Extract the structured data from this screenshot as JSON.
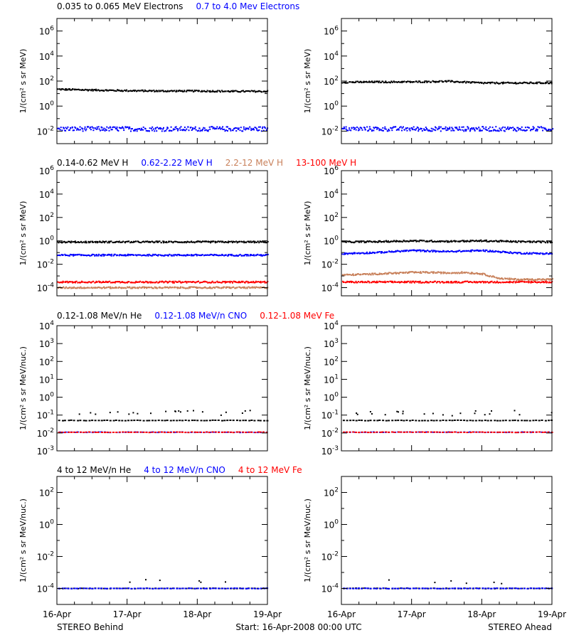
{
  "colors": {
    "black": "#000000",
    "blue": "#0000ff",
    "tan": "#c8805a",
    "red": "#ff0000"
  },
  "footer": {
    "left": "STEREO Behind",
    "center": "Start: 16-Apr-2008 00:00 UTC",
    "right": "STEREO Ahead"
  },
  "chart_data": [
    {
      "type": "scatter",
      "row": "electrons",
      "side": "STEREO Behind",
      "title_segments": [
        {
          "text": "0.035 to 0.065 MeV Electrons",
          "color": "#000000"
        },
        {
          "text": "0.7 to 4.0 Mev Electrons",
          "color": "#0000ff"
        }
      ],
      "ylabel": "1/(cm² s sr MeV)",
      "yscale": "log",
      "ylim": [
        0.001,
        10000000
      ],
      "ytick_exponents": [
        -2,
        0,
        2,
        4,
        6
      ],
      "x_ticks": [
        "16-Apr",
        "17-Apr",
        "18-Apr",
        "19-Apr"
      ],
      "xlim_days": [
        0,
        3
      ],
      "series": [
        {
          "name": "0.035 to 0.065 MeV Electrons",
          "color": "#000000",
          "x": [
            0,
            0.5,
            1,
            1.5,
            2,
            2.5,
            3
          ],
          "y": [
            22,
            19,
            17,
            16,
            16,
            15,
            15
          ]
        },
        {
          "name": "0.7 to 4.0 Mev Electrons",
          "color": "#0000ff",
          "x": [
            0,
            0.5,
            1,
            1.5,
            2,
            2.5,
            3
          ],
          "y": [
            0.015,
            0.015,
            0.015,
            0.015,
            0.015,
            0.015,
            0.015
          ]
        }
      ]
    },
    {
      "type": "scatter",
      "row": "electrons",
      "side": "STEREO Ahead",
      "title_segments": [],
      "ylabel": "1/(cm² s sr MeV)",
      "yscale": "log",
      "ylim": [
        0.001,
        10000000
      ],
      "ytick_exponents": [
        -2,
        0,
        2,
        4,
        6
      ],
      "x_ticks": [
        "16-Apr",
        "17-Apr",
        "18-Apr",
        "19-Apr"
      ],
      "xlim_days": [
        0,
        3
      ],
      "series": [
        {
          "name": "0.035 to 0.065 MeV Electrons",
          "color": "#000000",
          "x": [
            0,
            0.5,
            1,
            1.5,
            2,
            2.5,
            3
          ],
          "y": [
            80,
            85,
            85,
            95,
            70,
            70,
            72
          ]
        },
        {
          "name": "0.7 to 4.0 Mev Electrons",
          "color": "#0000ff",
          "x": [
            0,
            0.5,
            1,
            1.5,
            2,
            2.5,
            3
          ],
          "y": [
            0.015,
            0.015,
            0.015,
            0.015,
            0.015,
            0.015,
            0.015
          ]
        }
      ]
    },
    {
      "type": "scatter",
      "row": "protons",
      "side": "STEREO Behind",
      "title_segments": [
        {
          "text": "0.14-0.62 MeV H",
          "color": "#000000"
        },
        {
          "text": "0.62-2.22 MeV H",
          "color": "#0000ff"
        },
        {
          "text": "2.2-12 MeV H",
          "color": "#c8805a"
        },
        {
          "text": "13-100 MeV H",
          "color": "#ff0000"
        }
      ],
      "ylabel": "1/(cm² s sr MeV)",
      "yscale": "log",
      "ylim": [
        2e-05,
        1000000
      ],
      "ytick_exponents": [
        -4,
        -2,
        0,
        2,
        4,
        6
      ],
      "x_ticks": [
        "16-Apr",
        "17-Apr",
        "18-Apr",
        "19-Apr"
      ],
      "xlim_days": [
        0,
        3
      ],
      "series": [
        {
          "name": "0.14-0.62 MeV H",
          "color": "#000000",
          "x": [
            0,
            1,
            2,
            3
          ],
          "y": [
            0.8,
            0.8,
            0.8,
            0.8
          ]
        },
        {
          "name": "0.62-2.22 MeV H",
          "color": "#0000ff",
          "x": [
            0,
            1,
            2,
            3
          ],
          "y": [
            0.06,
            0.06,
            0.06,
            0.06
          ]
        },
        {
          "name": "2.2-12 MeV H",
          "color": "#c8805a",
          "x": [
            0,
            1,
            2,
            3
          ],
          "y": [
            0.0001,
            0.0001,
            0.0001,
            0.0001
          ]
        },
        {
          "name": "13-100 MeV H",
          "color": "#ff0000",
          "x": [
            0,
            1,
            2,
            3
          ],
          "y": [
            0.0003,
            0.0003,
            0.0003,
            0.0003
          ]
        }
      ]
    },
    {
      "type": "scatter",
      "row": "protons",
      "side": "STEREO Ahead",
      "title_segments": [],
      "ylabel": "1/(cm² s sr MeV)",
      "yscale": "log",
      "ylim": [
        2e-05,
        1000000
      ],
      "ytick_exponents": [
        -4,
        -2,
        0,
        2,
        4,
        6
      ],
      "x_ticks": [
        "16-Apr",
        "17-Apr",
        "18-Apr",
        "19-Apr"
      ],
      "xlim_days": [
        0,
        3
      ],
      "series": [
        {
          "name": "0.14-0.62 MeV H",
          "color": "#000000",
          "x": [
            0,
            0.5,
            1,
            1.5,
            2,
            2.5,
            3
          ],
          "y": [
            0.8,
            0.85,
            1.0,
            0.9,
            1.0,
            0.85,
            0.8
          ]
        },
        {
          "name": "0.62-2.22 MeV H",
          "color": "#0000ff",
          "x": [
            0,
            0.5,
            1,
            1.5,
            2,
            2.5,
            3
          ],
          "y": [
            0.08,
            0.1,
            0.15,
            0.12,
            0.15,
            0.09,
            0.08
          ]
        },
        {
          "name": "2.2-12 MeV H",
          "color": "#c8805a",
          "x": [
            0,
            0.5,
            1,
            1.25,
            1.5,
            1.75,
            2,
            2.25,
            2.5,
            3
          ],
          "y": [
            0.0012,
            0.0015,
            0.002,
            0.002,
            0.0018,
            0.002,
            0.0015,
            0.0006,
            0.0005,
            0.0005
          ]
        },
        {
          "name": "13-100 MeV H",
          "color": "#ff0000",
          "x": [
            0,
            1,
            2,
            3
          ],
          "y": [
            0.0003,
            0.0003,
            0.0003,
            0.0003
          ]
        }
      ]
    },
    {
      "type": "scatter",
      "row": "heavy-low",
      "side": "STEREO Behind",
      "title_segments": [
        {
          "text": "0.12-1.08 MeV/n He",
          "color": "#000000"
        },
        {
          "text": "0.12-1.08 MeV/n CNO",
          "color": "#0000ff"
        },
        {
          "text": "0.12-1.08 MeV Fe",
          "color": "#ff0000"
        }
      ],
      "ylabel": "1/(cm² s sr MeV/nuc.)",
      "yscale": "log",
      "ylim": [
        0.001,
        10000
      ],
      "ytick_exponents": [
        -3,
        -2,
        -1,
        0,
        1,
        2,
        3,
        4
      ],
      "x_ticks": [
        "16-Apr",
        "17-Apr",
        "18-Apr",
        "19-Apr"
      ],
      "xlim_days": [
        0,
        3
      ],
      "series": [
        {
          "name": "0.12-1.08 MeV/n He",
          "color": "#000000",
          "x": [
            0,
            1,
            2,
            3
          ],
          "y": [
            0.05,
            0.05,
            0.05,
            0.05
          ]
        },
        {
          "name": "0.12-1.08 MeV/n CNO",
          "color": "#0000ff",
          "x": [
            0,
            1,
            2,
            3
          ],
          "y": [
            0.011,
            0.011,
            0.011,
            0.011
          ]
        },
        {
          "name": "0.12-1.08 MeV Fe",
          "color": "#ff0000",
          "x": [
            0,
            1,
            2,
            3
          ],
          "y": [
            0.011,
            0.011,
            0.011,
            0.011
          ]
        }
      ]
    },
    {
      "type": "scatter",
      "row": "heavy-low",
      "side": "STEREO Ahead",
      "title_segments": [],
      "ylabel": "1/(cm² s sr MeV/nuc.)",
      "yscale": "log",
      "ylim": [
        0.001,
        10000
      ],
      "ytick_exponents": [
        -3,
        -2,
        -1,
        0,
        1,
        2,
        3,
        4
      ],
      "x_ticks": [
        "16-Apr",
        "17-Apr",
        "18-Apr",
        "19-Apr"
      ],
      "xlim_days": [
        0,
        3
      ],
      "series": [
        {
          "name": "0.12-1.08 MeV/n He",
          "color": "#000000",
          "x": [
            0,
            1,
            2,
            3
          ],
          "y": [
            0.05,
            0.05,
            0.05,
            0.05
          ]
        },
        {
          "name": "0.12-1.08 MeV/n CNO",
          "color": "#0000ff",
          "x": [
            0,
            1,
            2,
            3
          ],
          "y": [
            0.011,
            0.011,
            0.011,
            0.011
          ]
        },
        {
          "name": "0.12-1.08 MeV Fe",
          "color": "#ff0000",
          "x": [
            0,
            1,
            2,
            3
          ],
          "y": [
            0.011,
            0.011,
            0.011,
            0.011
          ]
        }
      ]
    },
    {
      "type": "scatter",
      "row": "heavy-high",
      "side": "STEREO Behind",
      "title_segments": [
        {
          "text": "4 to 12 MeV/n He",
          "color": "#000000"
        },
        {
          "text": "4 to 12 MeV/n CNO",
          "color": "#0000ff"
        },
        {
          "text": "4 to 12 MeV Fe",
          "color": "#ff0000"
        }
      ],
      "ylabel": "1/(cm² s sr MeV/nuc.)",
      "yscale": "log",
      "ylim": [
        1e-05,
        1000
      ],
      "ytick_exponents": [
        -4,
        -2,
        0,
        2
      ],
      "x_ticks": [
        "16-Apr",
        "17-Apr",
        "18-Apr",
        "19-Apr"
      ],
      "xlim_days": [
        0,
        3
      ],
      "series": [
        {
          "name": "4 to 12 MeV/n He",
          "color": "#000000",
          "x": [
            0,
            1,
            2,
            3
          ],
          "y": [
            0.0001,
            0.0001,
            0.0001,
            0.0001
          ]
        },
        {
          "name": "4 to 12 MeV/n CNO",
          "color": "#0000ff",
          "x": [
            0,
            1,
            2,
            3
          ],
          "y": [
            0.0001,
            0.0001,
            0.0001,
            0.0001
          ]
        }
      ]
    },
    {
      "type": "scatter",
      "row": "heavy-high",
      "side": "STEREO Ahead",
      "title_segments": [],
      "ylabel": "1/(cm² s sr MeV/nuc.)",
      "yscale": "log",
      "ylim": [
        1e-05,
        1000
      ],
      "ytick_exponents": [
        -4,
        -2,
        0,
        2
      ],
      "x_ticks": [
        "16-Apr",
        "17-Apr",
        "18-Apr",
        "19-Apr"
      ],
      "xlim_days": [
        0,
        3
      ],
      "series": [
        {
          "name": "4 to 12 MeV/n He",
          "color": "#000000",
          "x": [
            0,
            1,
            2,
            3
          ],
          "y": [
            0.0001,
            0.0001,
            0.0001,
            0.0001
          ]
        },
        {
          "name": "4 to 12 MeV/n CNO",
          "color": "#0000ff",
          "x": [
            0,
            1,
            2,
            3
          ],
          "y": [
            0.0001,
            0.0001,
            0.0001,
            0.0001
          ]
        }
      ]
    }
  ]
}
